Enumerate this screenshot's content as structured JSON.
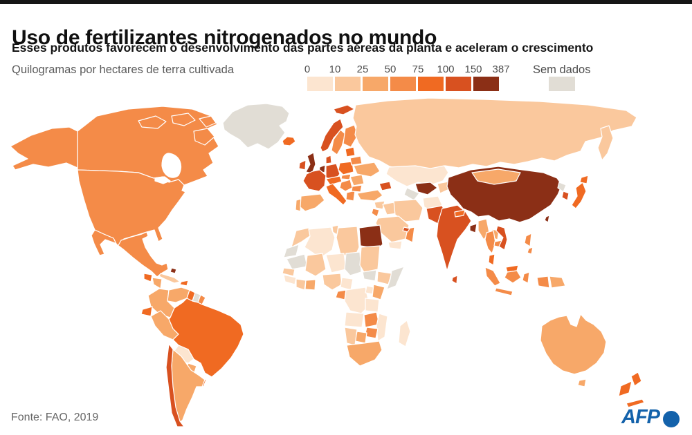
{
  "header": {
    "title": "Uso de fertilizantes nitrogenados no mundo",
    "subtitle": "Esses produtos favorecem o desenvolvimento das partes aéreas da planta e aceleram o crescimento",
    "legend_label": "Quilogramas por hectares de terra cultivada"
  },
  "legend": {
    "ticks": [
      "0",
      "10",
      "25",
      "50",
      "75",
      "100",
      "150",
      "387"
    ],
    "breaks": [
      0,
      10,
      25,
      50,
      75,
      100,
      150,
      387
    ],
    "colors": [
      "#fce5d0",
      "#fac89d",
      "#f7a869",
      "#f48b48",
      "#f06a22",
      "#d85120",
      "#8b2f16"
    ],
    "no_data_label": "Sem dados",
    "no_data_color": "#e1ddd5"
  },
  "footer": {
    "source": "Fonte: FAO, 2019",
    "brand": "AFP"
  },
  "map": {
    "type": "choropleth",
    "unit": "kg per hectare of cultivated land",
    "ocean_color": "#ffffff",
    "border_color": "#ffffff",
    "countries": [
      {
        "id": "greenland",
        "category": 0
      },
      {
        "id": "canada",
        "category": 4
      },
      {
        "id": "canada-arctic",
        "category": 4
      },
      {
        "id": "alaska",
        "category": 4
      },
      {
        "id": "usa",
        "category": 4
      },
      {
        "id": "mexico",
        "category": 4
      },
      {
        "id": "guatemala",
        "category": 5
      },
      {
        "id": "honduras-nicaragua",
        "category": 3
      },
      {
        "id": "costa-rica",
        "category": 7
      },
      {
        "id": "panama",
        "category": 5
      },
      {
        "id": "cuba",
        "category": 2
      },
      {
        "id": "hispaniola",
        "category": 5
      },
      {
        "id": "bahamas",
        "category": 7
      },
      {
        "id": "colombia",
        "category": 3
      },
      {
        "id": "venezuela",
        "category": 3
      },
      {
        "id": "guyana",
        "category": 5
      },
      {
        "id": "suriname",
        "category": 0
      },
      {
        "id": "french-guiana",
        "category": 4
      },
      {
        "id": "ecuador",
        "category": 5
      },
      {
        "id": "peru",
        "category": 3
      },
      {
        "id": "brazil",
        "category": 5
      },
      {
        "id": "bolivia",
        "category": 1
      },
      {
        "id": "paraguay",
        "category": 3
      },
      {
        "id": "chile",
        "category": 6
      },
      {
        "id": "argentina",
        "category": 3
      },
      {
        "id": "uruguay",
        "category": 5
      },
      {
        "id": "iceland",
        "category": 5
      },
      {
        "id": "uk",
        "category": 7
      },
      {
        "id": "ireland",
        "category": 6
      },
      {
        "id": "norway",
        "category": 6
      },
      {
        "id": "sweden",
        "category": 4
      },
      {
        "id": "finland",
        "category": 4
      },
      {
        "id": "denmark",
        "category": 6
      },
      {
        "id": "germany",
        "category": 6
      },
      {
        "id": "benelux",
        "category": 7
      },
      {
        "id": "france",
        "category": 6
      },
      {
        "id": "spain",
        "category": 3
      },
      {
        "id": "portugal",
        "category": 3
      },
      {
        "id": "italy",
        "category": 5
      },
      {
        "id": "alpine",
        "category": 5
      },
      {
        "id": "poland",
        "category": 5
      },
      {
        "id": "balkans",
        "category": 4
      },
      {
        "id": "greece",
        "category": 4
      },
      {
        "id": "romania",
        "category": 3
      },
      {
        "id": "bulgaria",
        "category": 4
      },
      {
        "id": "hungary",
        "category": 4
      },
      {
        "id": "ukraine",
        "category": 3
      },
      {
        "id": "belarus",
        "category": 4
      },
      {
        "id": "baltics",
        "category": 5
      },
      {
        "id": "svalbard",
        "category": 6
      },
      {
        "id": "russia",
        "category": 2
      },
      {
        "id": "kazakhstan",
        "category": 1
      },
      {
        "id": "uzbekistan",
        "category": 7
      },
      {
        "id": "turkmenistan",
        "category": 0
      },
      {
        "id": "kyrgyz-tajik",
        "category": 2
      },
      {
        "id": "turkey",
        "category": 3
      },
      {
        "id": "caucasus",
        "category": 6
      },
      {
        "id": "syria",
        "category": 2
      },
      {
        "id": "iraq",
        "category": 2
      },
      {
        "id": "iran",
        "category": 2
      },
      {
        "id": "israel-jordan",
        "category": 4
      },
      {
        "id": "saudi-arabia",
        "category": 2
      },
      {
        "id": "yemen",
        "category": 1
      },
      {
        "id": "oman",
        "category": 4
      },
      {
        "id": "uae",
        "category": 6
      },
      {
        "id": "afghanistan",
        "category": 1
      },
      {
        "id": "pakistan",
        "category": 6
      },
      {
        "id": "india",
        "category": 6
      },
      {
        "id": "nepal",
        "category": 5
      },
      {
        "id": "bangladesh",
        "category": 7
      },
      {
        "id": "sri-lanka",
        "category": 6
      },
      {
        "id": "china",
        "category": 7
      },
      {
        "id": "mongolia",
        "category": 3
      },
      {
        "id": "myanmar",
        "category": 3
      },
      {
        "id": "thailand",
        "category": 4
      },
      {
        "id": "laos",
        "category": 3
      },
      {
        "id": "cambodia",
        "category": 4
      },
      {
        "id": "vietnam",
        "category": 6
      },
      {
        "id": "malaysia",
        "category": 5
      },
      {
        "id": "indonesia",
        "category": 4
      },
      {
        "id": "philippines",
        "category": 4
      },
      {
        "id": "papua-new-guinea",
        "category": 3
      },
      {
        "id": "japan",
        "category": 5
      },
      {
        "id": "south-korea",
        "category": 6
      },
      {
        "id": "north-korea",
        "category": 0
      },
      {
        "id": "taiwan",
        "category": 7
      },
      {
        "id": "australia",
        "category": 3
      },
      {
        "id": "new-zealand",
        "category": 5
      },
      {
        "id": "new-caledonia",
        "category": 5
      },
      {
        "id": "morocco",
        "category": 2
      },
      {
        "id": "western-sahara",
        "category": 0
      },
      {
        "id": "algeria",
        "category": 1
      },
      {
        "id": "tunisia",
        "category": 2
      },
      {
        "id": "libya",
        "category": 2
      },
      {
        "id": "egypt",
        "category": 7
      },
      {
        "id": "mauritania",
        "category": 0
      },
      {
        "id": "mali",
        "category": 2
      },
      {
        "id": "niger",
        "category": 1
      },
      {
        "id": "chad",
        "category": 0
      },
      {
        "id": "sudan",
        "category": 2
      },
      {
        "id": "south-sudan",
        "category": 0
      },
      {
        "id": "ethiopia",
        "category": 2
      },
      {
        "id": "somalia",
        "category": 0
      },
      {
        "id": "senegal",
        "category": 2
      },
      {
        "id": "guinea",
        "category": 1
      },
      {
        "id": "ivory-coast",
        "category": 2
      },
      {
        "id": "ghana",
        "category": 3
      },
      {
        "id": "nigeria",
        "category": 2
      },
      {
        "id": "cameroon",
        "category": 1
      },
      {
        "id": "gabon",
        "category": 4
      },
      {
        "id": "drc",
        "category": 1
      },
      {
        "id": "uganda",
        "category": 1
      },
      {
        "id": "kenya",
        "category": 3
      },
      {
        "id": "tanzania",
        "category": 1
      },
      {
        "id": "angola",
        "category": 1
      },
      {
        "id": "zambia",
        "category": 4
      },
      {
        "id": "zimbabwe",
        "category": 4
      },
      {
        "id": "mozambique",
        "category": 1
      },
      {
        "id": "botswana",
        "category": 3
      },
      {
        "id": "namibia",
        "category": 2
      },
      {
        "id": "south-africa",
        "category": 3
      },
      {
        "id": "madagascar",
        "category": 1
      }
    ]
  }
}
